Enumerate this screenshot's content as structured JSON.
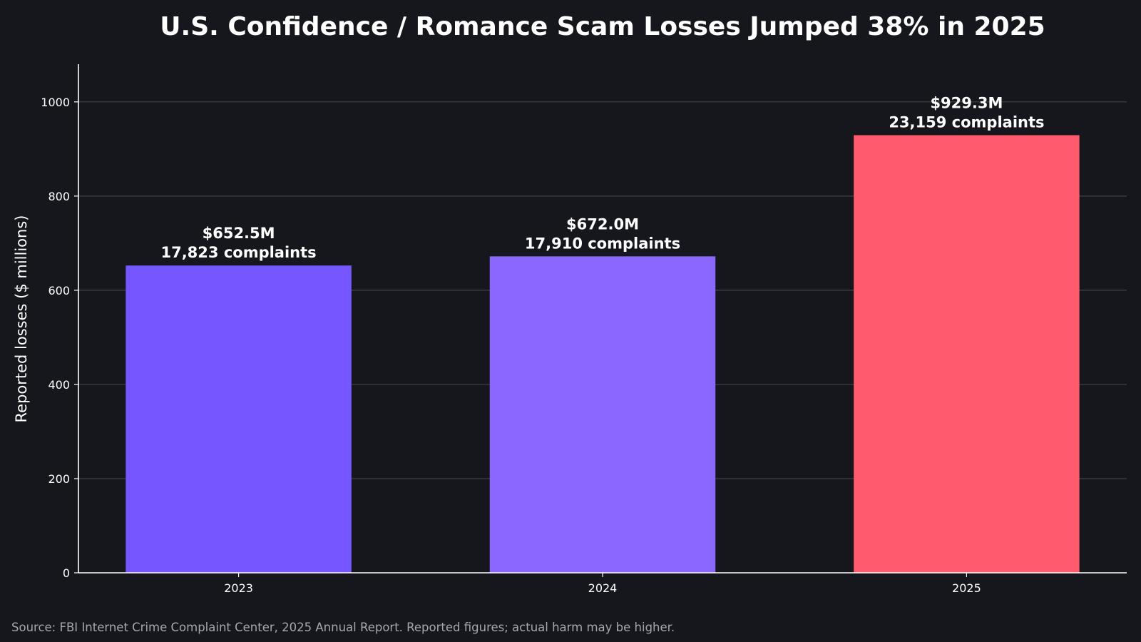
{
  "chart_data": {
    "type": "bar",
    "title": "U.S. Confidence / Romance Scam Losses Jumped 38% in 2025",
    "xlabel": "",
    "ylabel": "Reported losses ($ millions)",
    "categories": [
      "2023",
      "2024",
      "2025"
    ],
    "values": [
      652.5,
      672.0,
      929.3
    ],
    "complaints": [
      17823,
      17910,
      23159
    ],
    "bar_value_labels": [
      "$652.5M",
      "$672.0M",
      "$929.3M"
    ],
    "bar_count_labels": [
      "17,823 complaints",
      "17,910 complaints",
      "23,159 complaints"
    ],
    "bar_colors": [
      "#7657ff",
      "#8b66ff",
      "#ff5a6e"
    ],
    "ylim": [
      0,
      1080
    ],
    "yticks": [
      0,
      200,
      400,
      600,
      800,
      1000
    ],
    "grid": true,
    "legend": "none"
  },
  "source_note": "Source: FBI Internet Crime Complaint Center, 2025 Annual Report. Reported figures; actual harm may be higher."
}
